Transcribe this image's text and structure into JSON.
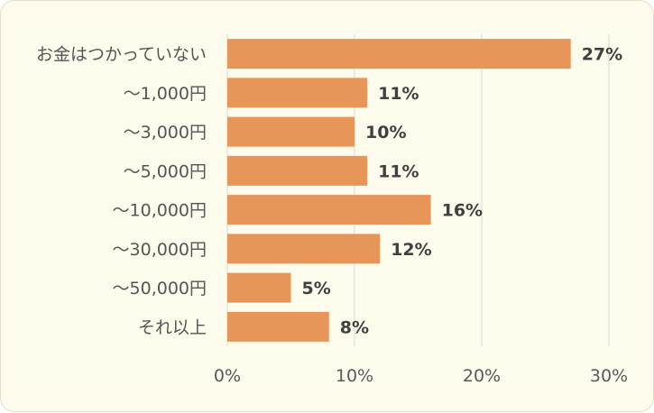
{
  "chart_data": {
    "type": "bar",
    "orientation": "horizontal",
    "categories": [
      "お金はつかっていない",
      "～1,000円",
      "～3,000円",
      "～5,000円",
      "～10,000円",
      "～30,000円",
      "～50,000円",
      "それ以上"
    ],
    "values": [
      27,
      11,
      10,
      11,
      16,
      12,
      5,
      8
    ],
    "value_labels": [
      "27%",
      "11%",
      "10%",
      "11%",
      "16%",
      "12%",
      "5%",
      "8%"
    ],
    "xlim": [
      0,
      30
    ],
    "xticks": [
      0,
      10,
      20,
      30
    ],
    "xtick_labels": [
      "0%",
      "10%",
      "20%",
      "30%"
    ],
    "grid": "vertical",
    "legend": "none",
    "title": "",
    "xlabel": "",
    "ylabel": "",
    "colors": {
      "bar": "#e8955a",
      "grid": "#d9d9d9",
      "category_text": "#555555",
      "value_text": "#404040",
      "tick_text": "#595959",
      "background": "#fdfbec"
    }
  }
}
